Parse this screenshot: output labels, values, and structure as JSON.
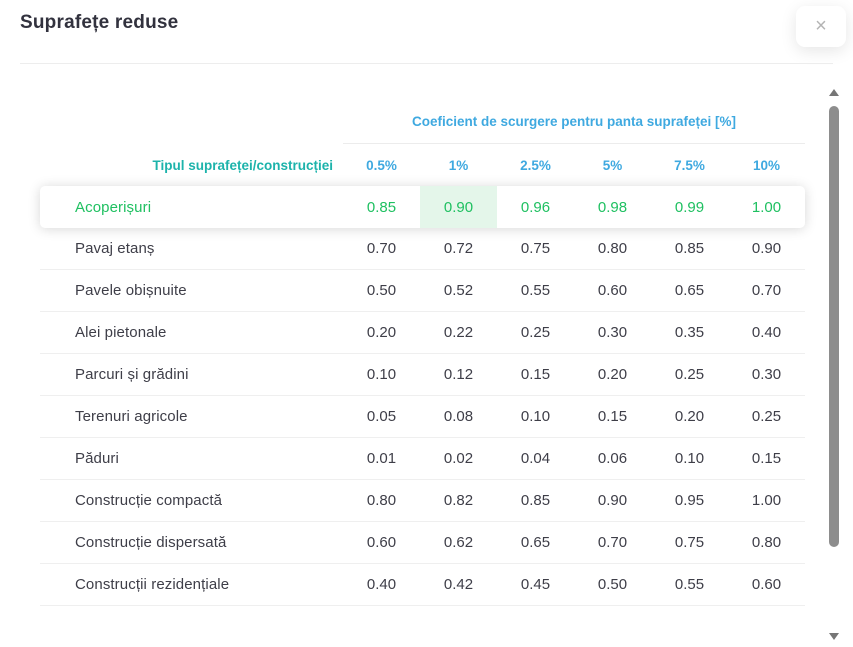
{
  "modal": {
    "title": "Suprafețe reduse",
    "close_icon": "×"
  },
  "table": {
    "group_header": "Coeficient de scurgere pentru panta suprafeței [%]",
    "type_column_header": "Tipul suprafeței/construcției",
    "slope_headers": [
      "0.5%",
      "1%",
      "2.5%",
      "5%",
      "7.5%",
      "10%"
    ],
    "highlighted_row_index": 0,
    "highlighted_cell_index": 1,
    "rows": [
      {
        "label": "Acoperișuri",
        "values": [
          "0.85",
          "0.90",
          "0.96",
          "0.98",
          "0.99",
          "1.00"
        ]
      },
      {
        "label": "Pavaj etanș",
        "values": [
          "0.70",
          "0.72",
          "0.75",
          "0.80",
          "0.85",
          "0.90"
        ]
      },
      {
        "label": "Pavele obișnuite",
        "values": [
          "0.50",
          "0.52",
          "0.55",
          "0.60",
          "0.65",
          "0.70"
        ]
      },
      {
        "label": "Alei pietonale",
        "values": [
          "0.20",
          "0.22",
          "0.25",
          "0.30",
          "0.35",
          "0.40"
        ]
      },
      {
        "label": "Parcuri și grădini",
        "values": [
          "0.10",
          "0.12",
          "0.15",
          "0.20",
          "0.25",
          "0.30"
        ]
      },
      {
        "label": "Terenuri agricole",
        "values": [
          "0.05",
          "0.08",
          "0.10",
          "0.15",
          "0.20",
          "0.25"
        ]
      },
      {
        "label": "Păduri",
        "values": [
          "0.01",
          "0.02",
          "0.04",
          "0.06",
          "0.10",
          "0.15"
        ]
      },
      {
        "label": "Construcție compactă",
        "values": [
          "0.80",
          "0.82",
          "0.85",
          "0.90",
          "0.95",
          "1.00"
        ]
      },
      {
        "label": "Construcție dispersată",
        "values": [
          "0.60",
          "0.62",
          "0.65",
          "0.70",
          "0.75",
          "0.80"
        ]
      },
      {
        "label": "Construcții rezidențiale",
        "values": [
          "0.40",
          "0.42",
          "0.45",
          "0.50",
          "0.55",
          "0.60"
        ]
      }
    ]
  },
  "colors": {
    "accent_blue": "#3fa9e0",
    "accent_teal": "#1db3ab",
    "highlight_green": "#1fc061",
    "highlight_cell_bg": "#e4f6ea"
  }
}
